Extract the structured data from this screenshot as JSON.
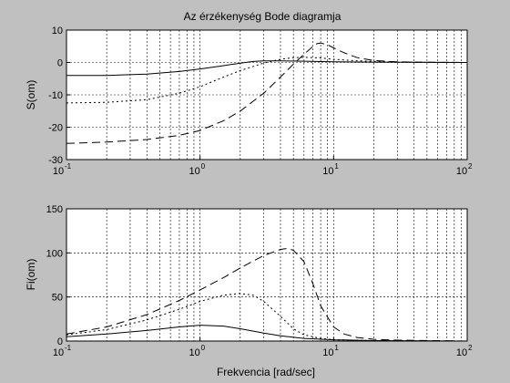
{
  "figure": {
    "background": "#c0c0c0",
    "axes_background": "#ffffff",
    "line_color": "#000000"
  },
  "chart_data": [
    {
      "type": "line",
      "title": "Az érzékenység Bode diagramja",
      "xlabel": "",
      "ylabel": "S(om)",
      "xscale": "log",
      "xlim": [
        0.1,
        100
      ],
      "ylim": [
        -30,
        10
      ],
      "xtick_exponents": [
        "-1",
        "0",
        "1",
        "2"
      ],
      "yticks": [
        "-30",
        "-20",
        "-10",
        "0",
        "10"
      ],
      "grid": true,
      "series": [
        {
          "style": "solid",
          "x": [
            0.1,
            0.2,
            0.4,
            0.7,
            1.0,
            1.5,
            2.0,
            2.5,
            3.0,
            4.0,
            6.0,
            10,
            20,
            100
          ],
          "y": [
            -4.0,
            -4.0,
            -3.6,
            -2.8,
            -2.0,
            -1.0,
            -0.2,
            0.3,
            0.5,
            0.5,
            0.4,
            0.2,
            0.1,
            0.0
          ]
        },
        {
          "style": "dotted",
          "x": [
            0.1,
            0.2,
            0.4,
            0.7,
            1.0,
            1.5,
            2.0,
            3.0,
            4.0,
            5.0,
            6.0,
            8.0,
            10,
            15,
            30,
            100
          ],
          "y": [
            -12.5,
            -12.3,
            -11.5,
            -9.5,
            -7.5,
            -4.5,
            -2.5,
            -0.2,
            1.0,
            1.5,
            1.6,
            1.4,
            1.0,
            0.5,
            0.1,
            0.0
          ]
        },
        {
          "style": "dashed",
          "x": [
            0.1,
            0.2,
            0.4,
            0.7,
            1.0,
            1.5,
            2.0,
            3.0,
            4.0,
            5.0,
            6.0,
            7.0,
            7.5,
            8.0,
            9.0,
            10,
            12,
            15,
            20,
            30,
            50,
            100
          ],
          "y": [
            -25.0,
            -24.6,
            -23.8,
            -22.5,
            -21.0,
            -18.0,
            -15.0,
            -9.5,
            -4.5,
            -0.5,
            2.5,
            5.0,
            5.8,
            6.0,
            5.5,
            4.5,
            3.0,
            1.5,
            0.6,
            0.2,
            0.05,
            0.0
          ]
        }
      ]
    },
    {
      "type": "line",
      "title": "",
      "xlabel": "Frekvencia [rad/sec]",
      "ylabel": "Fi(om)",
      "xscale": "log",
      "xlim": [
        0.1,
        100
      ],
      "ylim": [
        0,
        150
      ],
      "xtick_exponents": [
        "-1",
        "0",
        "1",
        "2"
      ],
      "yticks": [
        "0",
        "50",
        "100",
        "150"
      ],
      "grid": true,
      "series": [
        {
          "style": "solid",
          "x": [
            0.1,
            0.2,
            0.4,
            0.7,
            1.0,
            1.5,
            2.0,
            3.0,
            4.0,
            6.0,
            10,
            20,
            100
          ],
          "y": [
            5,
            8,
            12,
            16,
            18,
            17,
            14,
            9,
            6,
            3,
            1.5,
            0.5,
            0
          ]
        },
        {
          "style": "dotted",
          "x": [
            0.1,
            0.2,
            0.4,
            0.7,
            1.0,
            1.5,
            2.0,
            2.5,
            3.0,
            4.0,
            5.0,
            6.0,
            8.0,
            10,
            20,
            100
          ],
          "y": [
            7,
            13,
            24,
            36,
            45,
            52,
            54,
            52,
            45,
            28,
            14,
            7,
            3,
            1.5,
            0.5,
            0
          ]
        },
        {
          "style": "dashed",
          "x": [
            0.1,
            0.2,
            0.4,
            0.7,
            1.0,
            1.5,
            2.0,
            3.0,
            4.0,
            4.5,
            5.0,
            6.0,
            7.0,
            8.0,
            10,
            12,
            15,
            20,
            30,
            100
          ],
          "y": [
            8,
            16,
            30,
            46,
            58,
            72,
            83,
            97,
            104,
            105,
            103,
            90,
            65,
            40,
            16,
            8,
            4,
            2,
            1,
            0
          ]
        }
      ]
    }
  ]
}
